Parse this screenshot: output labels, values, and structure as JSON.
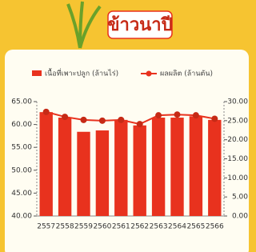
{
  "chart_data": {
    "type": "bar-line",
    "title": "ข้าวนาปี",
    "categories": [
      "2557",
      "2558",
      "2559",
      "2560",
      "2561",
      "2562",
      "2563",
      "2564",
      "2565",
      "2566"
    ],
    "series": [
      {
        "name": "เนื้อที่เพาะปลูก (ล้านไร่)",
        "type": "bar",
        "color": "#e8321e",
        "values": [
          62.7,
          61.5,
          58.4,
          58.7,
          61.0,
          59.8,
          61.5,
          61.5,
          61.8,
          61.0
        ]
      },
      {
        "name": "ผลผลิต (ล้านตัน)",
        "type": "line",
        "axis": "y2",
        "color": "#e8321e",
        "values": [
          27.3,
          26.0,
          25.2,
          25.0,
          25.2,
          24.1,
          26.4,
          26.6,
          26.4,
          25.5
        ]
      }
    ],
    "ylim": [
      40,
      65
    ],
    "yticks": [
      {
        "value": 40,
        "label": "40.00"
      },
      {
        "value": 45,
        "label": "45.00"
      },
      {
        "value": 50,
        "label": "50.00"
      },
      {
        "value": 55,
        "label": "55.00"
      },
      {
        "value": 60,
        "label": "60.00"
      },
      {
        "value": 65,
        "label": "65.00"
      }
    ],
    "y2lim": [
      0,
      30
    ],
    "y2ticks": [
      {
        "value": 0,
        "label": "0.00"
      },
      {
        "value": 5,
        "label": "5.00"
      },
      {
        "value": 10,
        "label": "10.00"
      },
      {
        "value": 15,
        "label": "15.00"
      },
      {
        "value": 20,
        "label": "20.00"
      },
      {
        "value": 25,
        "label": "25.00"
      },
      {
        "value": 30,
        "label": "30.00"
      }
    ]
  }
}
